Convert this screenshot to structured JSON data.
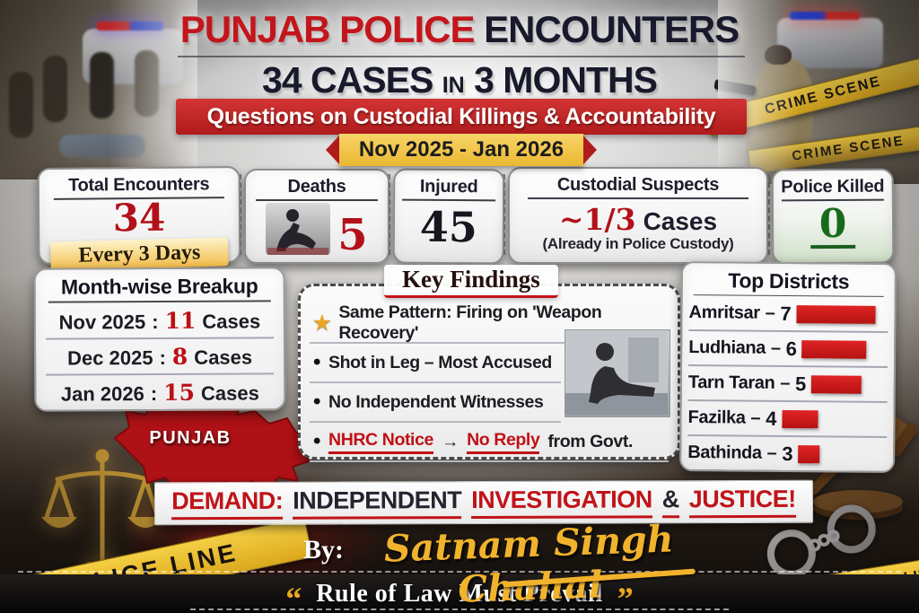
{
  "header": {
    "title_red": "PUNJAB POLICE",
    "title_dark": "ENCOUNTERS",
    "count_big1": "34 CASES",
    "count_small": "IN",
    "count_big2": "3 MONTHS",
    "banner": "Questions on Custodial Killings & Accountability",
    "date_range": "Nov 2025 - Jan 2026"
  },
  "stats": [
    {
      "label": "Total Encounters",
      "value": "34",
      "note": "Every 3 Days"
    },
    {
      "label": "Deaths",
      "value": "5"
    },
    {
      "label": "Injured",
      "value": "45"
    },
    {
      "label": "Custodial Suspects",
      "value": "~1/3",
      "suffix": "Cases",
      "note": "(Already in Police Custody)"
    },
    {
      "label": "Police Killed",
      "value": "0"
    }
  ],
  "month_breakup": {
    "title": "Month-wise Breakup",
    "separator": ":",
    "unit": "Cases",
    "rows": [
      {
        "month": "Nov 2025",
        "cases": 11
      },
      {
        "month": "Dec 2025",
        "cases": 8
      },
      {
        "month": "Jan 2026",
        "cases": 15
      }
    ]
  },
  "map_label": "PUNJAB",
  "key_findings": {
    "title": "Key Findings",
    "icons": {
      "star": "★",
      "dot": "•",
      "arrow": "→"
    },
    "items": [
      {
        "text": "Same Pattern: Firing on 'Weapon Recovery'"
      },
      {
        "text": "Shot in Leg – Most Accused"
      },
      {
        "text": "No Independent Witnesses"
      },
      {
        "parts": [
          {
            "text": "NHRC Notice"
          },
          {
            "text": "→"
          },
          {
            "text": "No Reply"
          },
          {
            "text": "from Govt."
          }
        ]
      }
    ]
  },
  "top_districts": {
    "title": "Top Districts",
    "separator": "–",
    "rows": [
      {
        "name": "Amritsar",
        "value": 7
      },
      {
        "name": "Ludhiana",
        "value": 6
      },
      {
        "name": "Tarn Taran",
        "value": 5
      },
      {
        "name": "Fazilka",
        "value": 4
      },
      {
        "name": "Bathinda",
        "value": 3
      }
    ]
  },
  "demand": {
    "parts": [
      {
        "text": "DEMAND:"
      },
      {
        "text": "INDEPENDENT"
      },
      {
        "text": "INVESTIGATION"
      },
      {
        "text": "&"
      },
      {
        "text": "JUSTICE!"
      }
    ]
  },
  "byline": {
    "prefix": "By:",
    "name": "Satnam Singh Chahal"
  },
  "quote": {
    "open": "“",
    "text": "Rule of Law Must Prevail",
    "close": "”"
  },
  "background": {
    "crime_scene": "CRIME SCENE",
    "police_line": "POLICE LINE",
    "police_line_right": "POLICE-LINE",
    "line_word": "LINE"
  },
  "colors": {
    "accent_red": "#c01318",
    "dark_navy": "#181a2b",
    "ribbon_yellow": "#f2c23e",
    "green_zero": "#176b1b",
    "bar_red": "#cf1d1d"
  },
  "chart_data": [
    {
      "type": "bar",
      "title": "Top Districts",
      "orientation": "horizontal",
      "categories": [
        "Amritsar",
        "Ludhiana",
        "Tarn Taran",
        "Fazilka",
        "Bathinda"
      ],
      "values": [
        7,
        6,
        5,
        4,
        3
      ],
      "bar_color": "#cf1d1d",
      "xlabel": "",
      "ylabel": "",
      "legend": false,
      "grid": false
    },
    {
      "type": "table",
      "title": "Month-wise Breakup",
      "categories": [
        "Nov 2025",
        "Dec 2025",
        "Jan 2026"
      ],
      "values": [
        11,
        8,
        15
      ],
      "unit": "Cases"
    },
    {
      "type": "table",
      "title": "Headline Stats",
      "categories": [
        "Total Encounters",
        "Deaths",
        "Injured",
        "Custodial Suspects",
        "Police Killed"
      ],
      "values": [
        "34",
        "5",
        "45",
        "~1/3 Cases (Already in Police Custody)",
        "0"
      ]
    }
  ]
}
